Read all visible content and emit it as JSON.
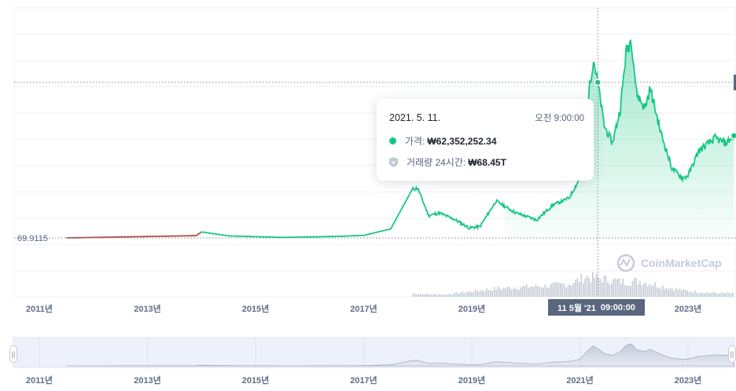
{
  "chart_data": {
    "type": "line",
    "title": "",
    "xlabel": "",
    "ylabel": "",
    "x_ticks": [
      "2011년",
      "2013년",
      "2015년",
      "2017년",
      "2019년",
      "2021년",
      "2023년"
    ],
    "y_reference_label": "69.9115",
    "price_series": [
      {
        "t": 2011.5,
        "v": 0
      },
      {
        "t": 2013.9,
        "v": 0.9
      },
      {
        "t": 2014.0,
        "v": 2.4
      },
      {
        "t": 2014.5,
        "v": 0.8
      },
      {
        "t": 2015.5,
        "v": 0.2
      },
      {
        "t": 2016.5,
        "v": 0.6
      },
      {
        "t": 2017.0,
        "v": 1.0
      },
      {
        "t": 2017.5,
        "v": 3.6
      },
      {
        "t": 2017.9,
        "v": 19.5
      },
      {
        "t": 2018.0,
        "v": 20.0
      },
      {
        "t": 2018.2,
        "v": 9.0
      },
      {
        "t": 2018.4,
        "v": 10.0
      },
      {
        "t": 2018.7,
        "v": 7.2
      },
      {
        "t": 2018.95,
        "v": 4.0
      },
      {
        "t": 2019.15,
        "v": 4.5
      },
      {
        "t": 2019.45,
        "v": 14.8
      },
      {
        "t": 2019.8,
        "v": 10.2
      },
      {
        "t": 2020.2,
        "v": 7.2
      },
      {
        "t": 2020.5,
        "v": 13.2
      },
      {
        "t": 2020.8,
        "v": 16.0
      },
      {
        "t": 2021.0,
        "v": 24.0
      },
      {
        "t": 2021.15,
        "v": 56.0
      },
      {
        "t": 2021.25,
        "v": 72.0
      },
      {
        "t": 2021.33,
        "v": 62.4
      },
      {
        "t": 2021.45,
        "v": 45.0
      },
      {
        "t": 2021.6,
        "v": 38.0
      },
      {
        "t": 2021.75,
        "v": 52.0
      },
      {
        "t": 2021.85,
        "v": 74.0
      },
      {
        "t": 2021.95,
        "v": 80.0
      },
      {
        "t": 2022.05,
        "v": 58.0
      },
      {
        "t": 2022.2,
        "v": 52.0
      },
      {
        "t": 2022.3,
        "v": 60.0
      },
      {
        "t": 2022.5,
        "v": 42.0
      },
      {
        "t": 2022.7,
        "v": 28.0
      },
      {
        "t": 2022.9,
        "v": 24.0
      },
      {
        "t": 2023.0,
        "v": 25.0
      },
      {
        "t": 2023.2,
        "v": 35.0
      },
      {
        "t": 2023.5,
        "v": 40.0
      },
      {
        "t": 2023.7,
        "v": 38.0
      },
      {
        "t": 2023.85,
        "v": 41.0
      }
    ],
    "volume_series": [
      {
        "t": 2017.9,
        "v": 0.15
      },
      {
        "t": 2018.5,
        "v": 0.1
      },
      {
        "t": 2019.3,
        "v": 0.35
      },
      {
        "t": 2019.8,
        "v": 0.45
      },
      {
        "t": 2020.3,
        "v": 0.5
      },
      {
        "t": 2020.8,
        "v": 0.6
      },
      {
        "t": 2021.1,
        "v": 0.95
      },
      {
        "t": 2021.4,
        "v": 0.85
      },
      {
        "t": 2021.8,
        "v": 0.7
      },
      {
        "t": 2022.1,
        "v": 0.75
      },
      {
        "t": 2022.5,
        "v": 0.5
      },
      {
        "t": 2022.9,
        "v": 0.3
      },
      {
        "t": 2023.3,
        "v": 0.2
      },
      {
        "t": 2023.85,
        "v": 0.15
      }
    ],
    "legend": "none",
    "grid": true,
    "colors": {
      "up": "#16c784",
      "base": "#b04f45",
      "area": "#16c784",
      "muted": "#58667e"
    }
  },
  "tooltip": {
    "date": "2021. 5. 11.",
    "time": "오전 9:00:00",
    "price_label": "가격:",
    "price_value": "₩62,352,252.34",
    "volume_label": "거래량 24시간:",
    "volume_value": "₩68.45T"
  },
  "crosshair": {
    "date": "11 5월 '21",
    "time": "09:00:00"
  },
  "watermark": "CoinMarketCap",
  "navigator": {
    "ticks": [
      "2011년",
      "2013년",
      "2015년",
      "2017년",
      "2019년",
      "2021년",
      "2023년"
    ]
  }
}
